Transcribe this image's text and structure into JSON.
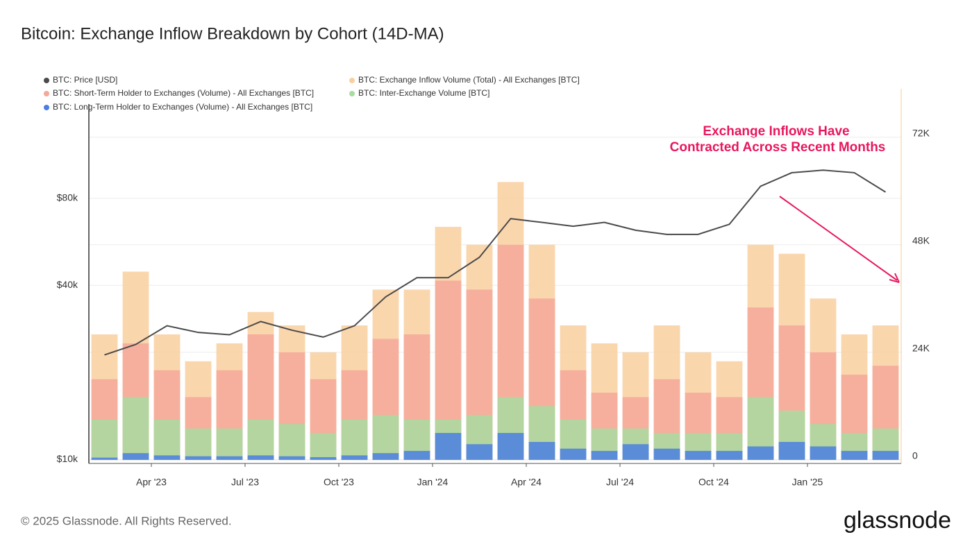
{
  "chart_data": {
    "type": "bar",
    "title": "Bitcoin: Exchange Inflow Breakdown by Cohort (14D-MA)",
    "annotation": [
      "Exchange Inflows Have",
      "Contracted Across Recent Months"
    ],
    "x": [
      "2023-02",
      "2023-03",
      "2023-04",
      "2023-05",
      "2023-06",
      "2023-07",
      "2023-08",
      "2023-09",
      "2023-10",
      "2023-11",
      "2023-12",
      "2024-01",
      "2024-02",
      "2024-03",
      "2024-04",
      "2024-05",
      "2024-06",
      "2024-07",
      "2024-08",
      "2024-09",
      "2024-10",
      "2024-11",
      "2024-12",
      "2025-01",
      "2025-02",
      "2025-03"
    ],
    "xlim": [
      "2023-02",
      "2025-04"
    ],
    "xticks": [
      {
        "value": "2023-04",
        "label": "Apr '23"
      },
      {
        "value": "2023-07",
        "label": "Jul '23"
      },
      {
        "value": "2023-10",
        "label": "Oct '23"
      },
      {
        "value": "2024-01",
        "label": "Jan '24"
      },
      {
        "value": "2024-04",
        "label": "Apr '24"
      },
      {
        "value": "2024-07",
        "label": "Jul '24"
      },
      {
        "value": "2024-10",
        "label": "Oct '24"
      },
      {
        "value": "2025-01",
        "label": "Jan '25"
      }
    ],
    "ylim": [
      9700,
      191000
    ],
    "ylog": true,
    "yticks": [
      {
        "value": 10000,
        "label": "$10k"
      },
      {
        "value": 40000,
        "label": "$40k"
      },
      {
        "value": 80000,
        "label": "$80k"
      }
    ],
    "y2lim": [
      -800,
      82800
    ],
    "y2ticks": [
      0,
      {
        "value": 24000,
        "label": "24K"
      },
      {
        "value": 48000,
        "label": "48K"
      },
      {
        "value": 72000,
        "label": "72K"
      }
    ],
    "grid": true,
    "series": [
      {
        "name": "BTC: Price [USD]",
        "color": "#4a4a4a",
        "kind": "line",
        "axis": "y",
        "values": [
          23000,
          25000,
          29000,
          27500,
          27000,
          30000,
          28000,
          26500,
          29000,
          36500,
          42500,
          42500,
          50000,
          68000,
          66000,
          64000,
          66000,
          62000,
          60000,
          60000,
          65000,
          88000,
          98000,
          100000,
          98000,
          84000
        ]
      },
      {
        "name": "BTC: Exchange Inflow Volume (Total) - All Exchanges [BTC]",
        "color": "#f9cf9f",
        "kind": "bar",
        "axis": "y2",
        "values": [
          28000,
          42000,
          28000,
          22000,
          26000,
          33000,
          30000,
          24000,
          30000,
          38000,
          38000,
          52000,
          48000,
          62000,
          48000,
          30000,
          26000,
          24000,
          30000,
          24000,
          22000,
          48000,
          46000,
          36000,
          28000,
          30000
        ]
      },
      {
        "name": "BTC: Short-Term Holder to Exchanges (Volume) - All Exchanges [BTC]",
        "color": "#f4a89a",
        "kind": "bar",
        "axis": "y2",
        "values": [
          18000,
          26000,
          20000,
          14000,
          20000,
          28000,
          24000,
          18000,
          20000,
          27000,
          28000,
          40000,
          38000,
          48000,
          36000,
          20000,
          15000,
          14000,
          18000,
          15000,
          14000,
          34000,
          30000,
          24000,
          19000,
          21000
        ]
      },
      {
        "name": "BTC: Inter-Exchange Volume [BTC]",
        "color": "#a8dca0",
        "kind": "bar",
        "axis": "y2",
        "values": [
          9000,
          14000,
          9000,
          7000,
          7000,
          9000,
          8000,
          6000,
          9000,
          10000,
          9000,
          9000,
          10000,
          14000,
          12000,
          9000,
          7000,
          7000,
          6000,
          6000,
          6000,
          14000,
          11000,
          8000,
          6000,
          7000
        ]
      },
      {
        "name": "BTC: Long-Term Holder to Exchanges (Volume) - All Exchanges [BTC]",
        "color": "#4a7fe0",
        "kind": "bar",
        "axis": "y2",
        "values": [
          500,
          1500,
          1000,
          800,
          800,
          1000,
          800,
          600,
          1000,
          1500,
          2000,
          6000,
          3500,
          6000,
          4000,
          2500,
          2000,
          3500,
          2500,
          2000,
          2000,
          3000,
          4000,
          3000,
          2000,
          2000
        ]
      }
    ]
  },
  "footer": "© 2025 Glassnode. All Rights Reserved.",
  "logo": "glassnode"
}
